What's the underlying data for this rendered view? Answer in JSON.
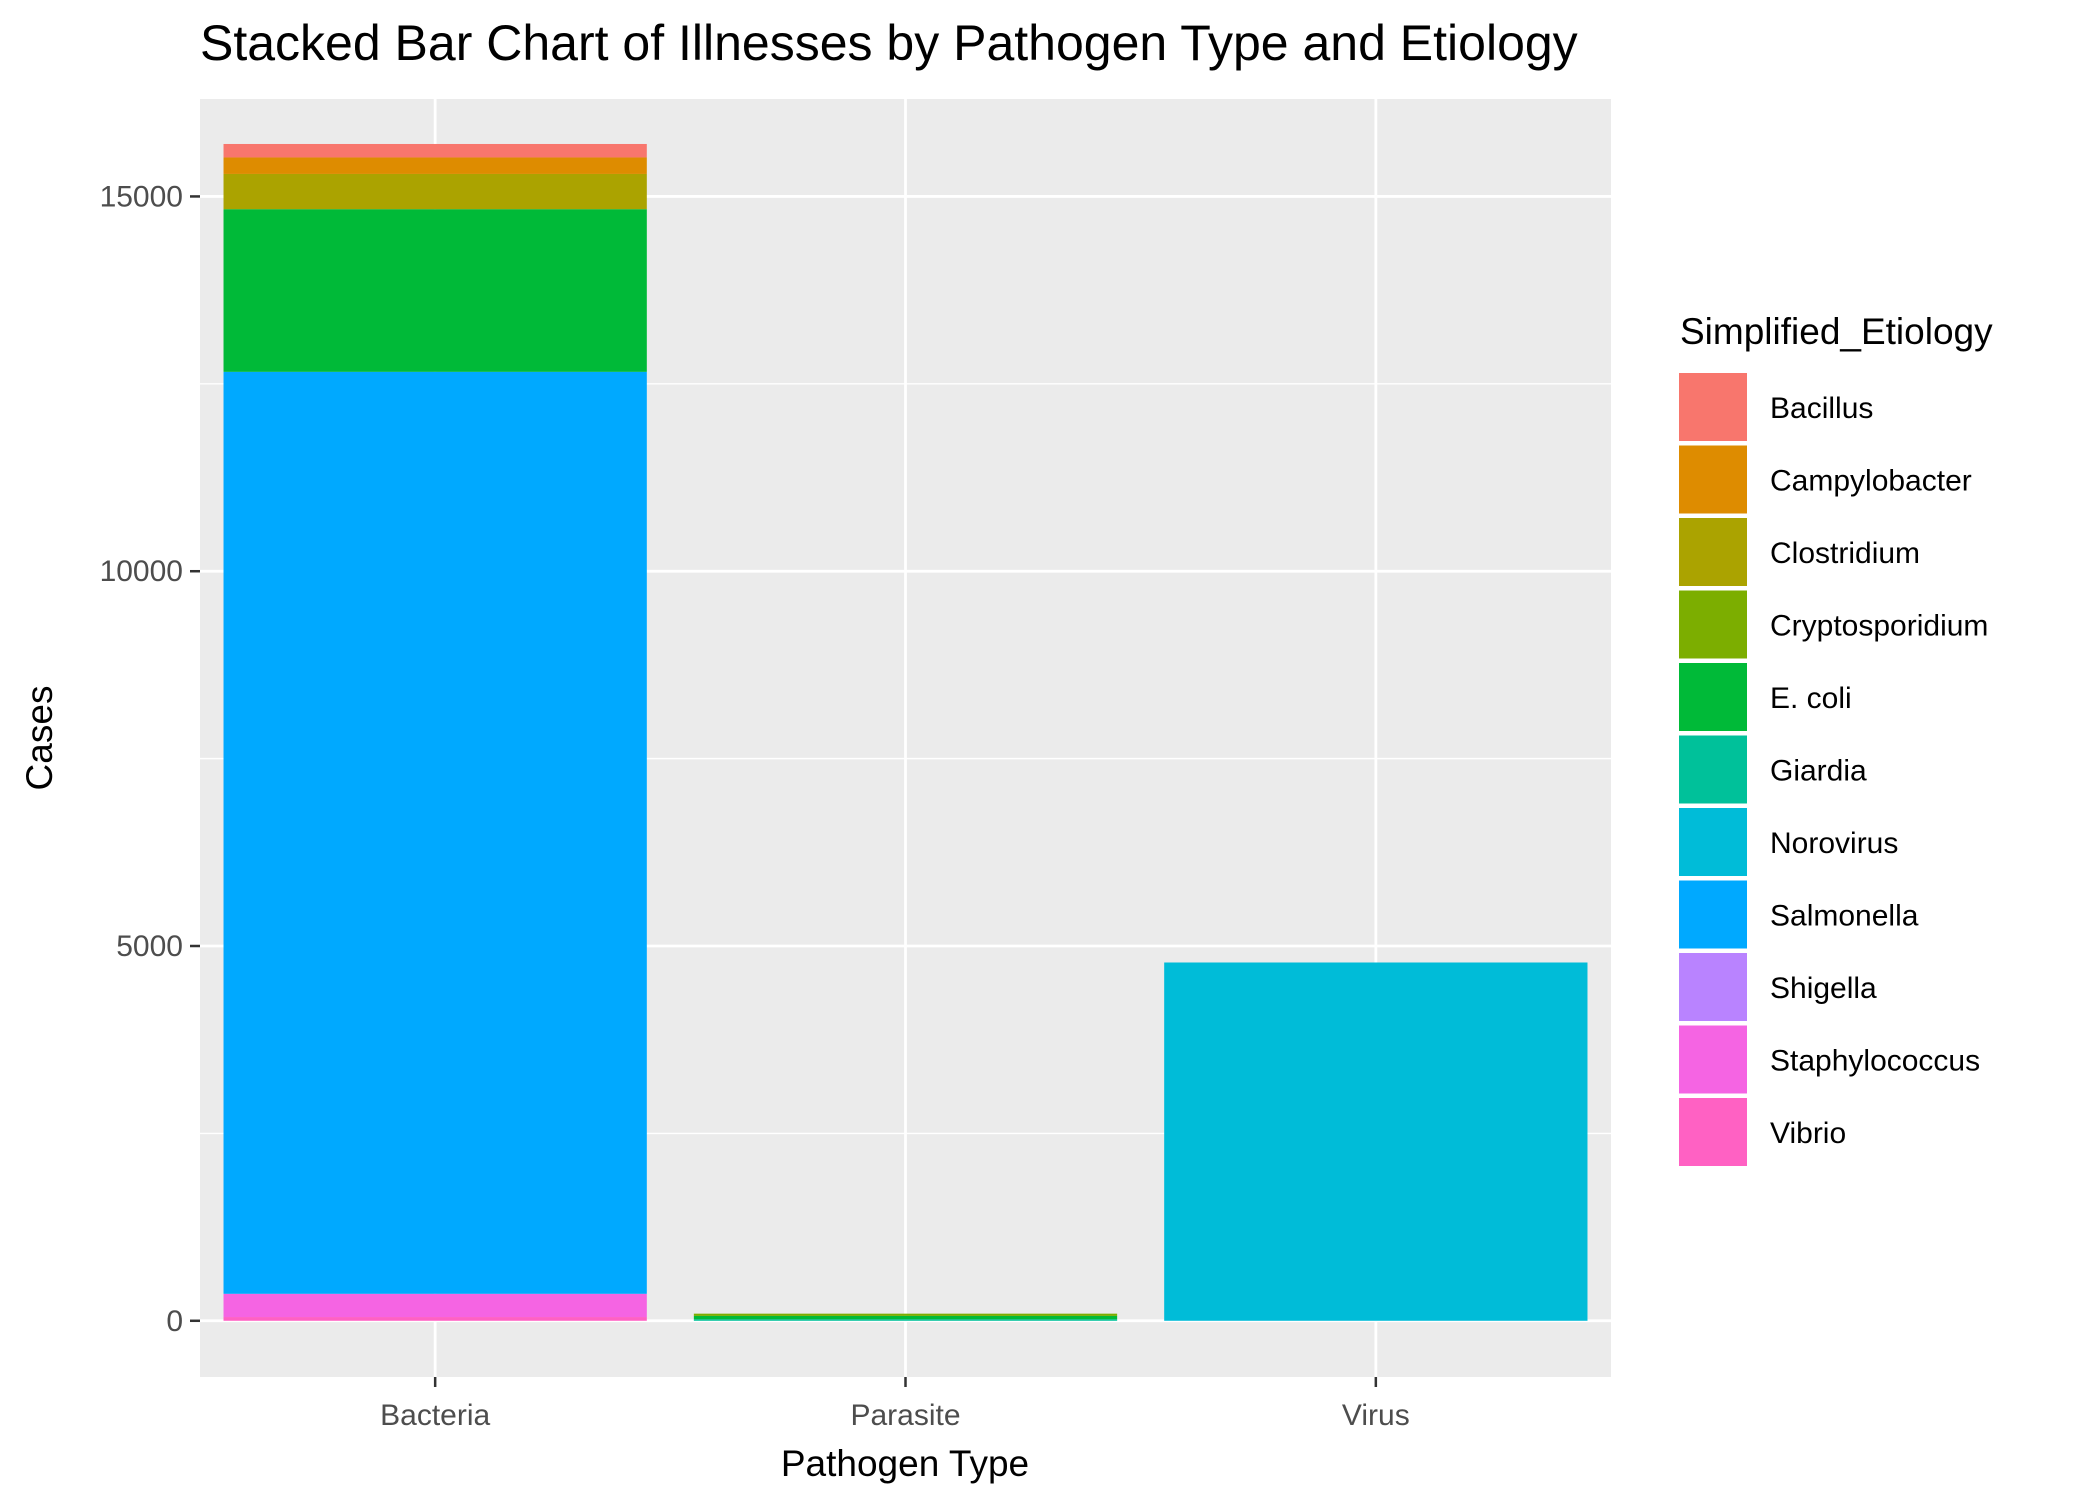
{
  "chart_data": {
    "type": "bar",
    "stacked": true,
    "title": "Stacked Bar Chart of Illnesses by Pathogen Type and Etiology",
    "xlabel": "Pathogen Type",
    "ylabel": "Cases",
    "categories": [
      "Bacteria",
      "Parasite",
      "Virus"
    ],
    "ylim": [
      -750,
      16300
    ],
    "yticks": [
      0,
      5000,
      10000,
      15000
    ],
    "ytick_labels": [
      "0",
      "5000",
      "10000",
      "15000"
    ],
    "grid": true,
    "legend": {
      "title": "Simplified_Etiology",
      "position": "right"
    },
    "series": [
      {
        "name": "Vibrio",
        "color": "#FF61C3",
        "values": [
          50,
          0,
          0
        ]
      },
      {
        "name": "Staphylococcus",
        "color": "#F564E3",
        "values": [
          310,
          0,
          0
        ]
      },
      {
        "name": "Shigella",
        "color": "#B983FF",
        "values": [
          0,
          0,
          0
        ]
      },
      {
        "name": "Salmonella",
        "color": "#00A9FF",
        "values": [
          12300,
          0,
          0
        ]
      },
      {
        "name": "Norovirus",
        "color": "#00BCD8",
        "values": [
          0,
          0,
          4780
        ]
      },
      {
        "name": "Giardia",
        "color": "#00C19A",
        "values": [
          0,
          20,
          0
        ]
      },
      {
        "name": "E. coli",
        "color": "#00BA38",
        "values": [
          2170,
          45,
          0
        ]
      },
      {
        "name": "Cryptosporidium",
        "color": "#7CAE00",
        "values": [
          0,
          30,
          0
        ]
      },
      {
        "name": "Clostridium",
        "color": "#ABA300",
        "values": [
          470,
          0,
          0
        ]
      },
      {
        "name": "Campylobacter",
        "color": "#DE8C00",
        "values": [
          220,
          0,
          0
        ]
      },
      {
        "name": "Bacillus",
        "color": "#F8766D",
        "values": [
          180,
          0,
          0
        ]
      }
    ],
    "legend_order": [
      "Bacillus",
      "Campylobacter",
      "Clostridium",
      "Cryptosporidium",
      "E. coli",
      "Giardia",
      "Norovirus",
      "Salmonella",
      "Shigella",
      "Staphylococcus",
      "Vibrio"
    ],
    "colors": {
      "panel_background": "#EBEBEB",
      "grid_line": "#FFFFFF",
      "tick_text": "#4D4D4D"
    }
  }
}
